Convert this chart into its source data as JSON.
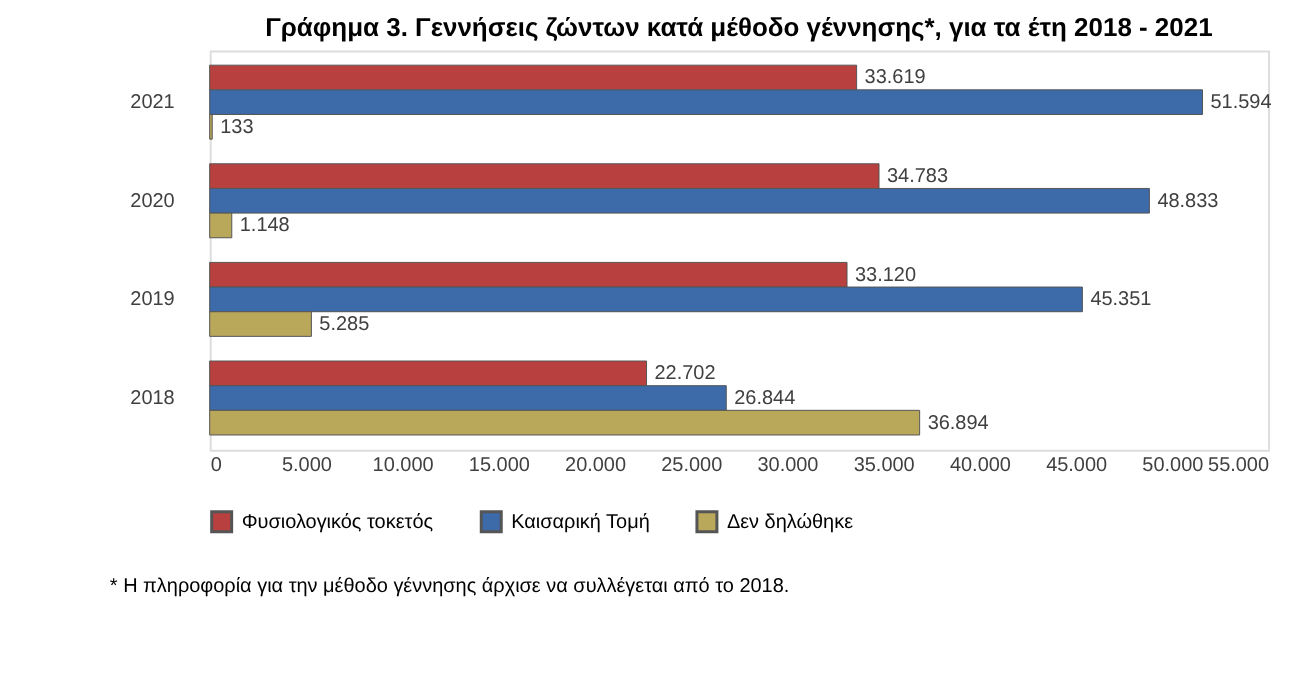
{
  "chart_data": {
    "type": "bar",
    "orientation": "horizontal",
    "title": "Γράφημα 3. Γεννήσεις ζώντων κατά μέθοδο γέννησης*, για τα έτη 2018 - 2021",
    "categories": [
      "2021",
      "2020",
      "2019",
      "2018"
    ],
    "series": [
      {
        "name": "Φυσιολογικός τοκετός",
        "color": "#b8413f",
        "values": [
          33619,
          34783,
          33120,
          22702
        ],
        "value_labels": [
          "33.619",
          "34.783",
          "33.120",
          "22.702"
        ]
      },
      {
        "name": "Καισαρική Τομή",
        "color": "#3d6aa8",
        "values": [
          51594,
          48833,
          45351,
          26844
        ],
        "value_labels": [
          "51.594",
          "48.833",
          "45.351",
          "26.844"
        ]
      },
      {
        "name": "Δεν δηλώθηκε",
        "color": "#b9a75a",
        "values": [
          133,
          1148,
          5285,
          36894
        ],
        "value_labels": [
          "133",
          "1.148",
          "5.285",
          "36.894"
        ]
      }
    ],
    "xlim": [
      0,
      55000
    ],
    "xticks": [
      0,
      {
        "value": 5000,
        "label": "5.000"
      },
      {
        "value": 10000,
        "label": "10.000"
      },
      {
        "value": 15000,
        "label": "15.000"
      },
      {
        "value": 20000,
        "label": "20.000"
      },
      {
        "value": 25000,
        "label": "25.000"
      },
      {
        "value": 30000,
        "label": "30.000"
      },
      {
        "value": 35000,
        "label": "35.000"
      },
      {
        "value": 40000,
        "label": "40.000"
      },
      {
        "value": 45000,
        "label": "45.000"
      },
      {
        "value": 50000,
        "label": "50.000"
      },
      {
        "value": 55000,
        "label": "55.000"
      }
    ],
    "grid": false,
    "legend": "bottom",
    "annotations": [
      "* Η πληροφορία για την μέθοδο γέννησης άρχισε να συλλέγεται από το 2018."
    ]
  }
}
